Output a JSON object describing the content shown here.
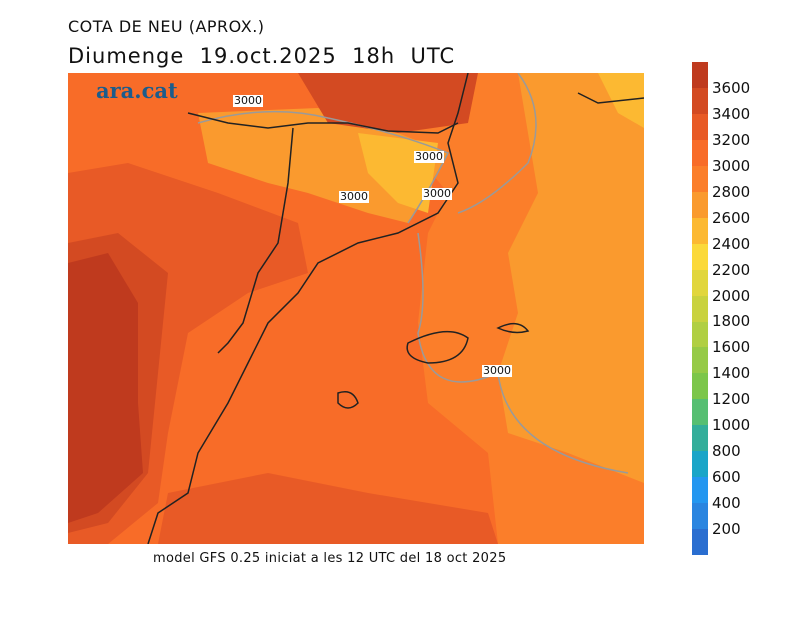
{
  "title": "COTA DE NEU (APROX.)",
  "subtitle": "Diumenge  19.oct.2025  18h  UTC",
  "logo": "ara.cat",
  "footer": "model GFS 0.25 iniciat a les 12 UTC del 18 oct 2025",
  "contour_labels": [
    "3000",
    "3000",
    "3000",
    "3000",
    "3000"
  ],
  "colorbar": {
    "labels": [
      "3600",
      "3400",
      "3200",
      "3000",
      "2800",
      "2600",
      "2400",
      "2200",
      "2000",
      "1800",
      "1600",
      "1400",
      "1200",
      "1000",
      "800",
      "600",
      "400",
      "200"
    ],
    "colors": [
      "#bf3a1e",
      "#d34a22",
      "#e85a26",
      "#f86c28",
      "#fb7e2a",
      "#fa9a2e",
      "#fcb932",
      "#fbd93a",
      "#e1d63c",
      "#c9d23e",
      "#b0cf42",
      "#96ca46",
      "#7cc64a",
      "#56bf72",
      "#33ae9a",
      "#1aa5c8",
      "#2497f0",
      "#2a85e0",
      "#2a6ed0"
    ]
  }
}
